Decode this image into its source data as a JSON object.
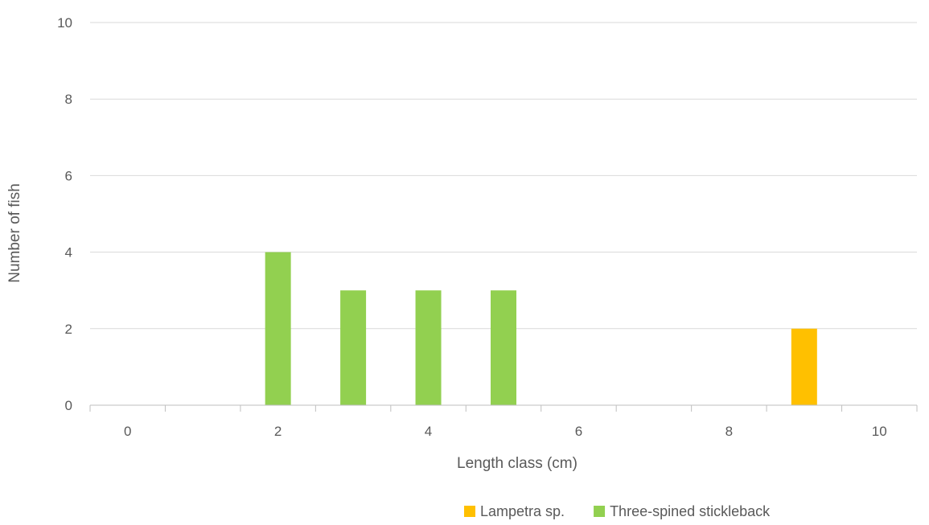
{
  "chart_data": {
    "type": "bar",
    "title": "",
    "xlabel": "Length class (cm)",
    "ylabel": "Number of fish",
    "xlim": [
      -0.5,
      10.5
    ],
    "ylim": [
      0,
      10
    ],
    "xticks": [
      0,
      2,
      4,
      6,
      8,
      10
    ],
    "yticks": [
      0,
      2,
      4,
      6,
      8,
      10
    ],
    "grid": true,
    "legend_position": "bottom",
    "categories": [
      0,
      1,
      2,
      3,
      4,
      5,
      6,
      7,
      8,
      9,
      10
    ],
    "series": [
      {
        "name": "Lampetra sp.",
        "color": "#FFC000",
        "values": [
          0,
          0,
          0,
          0,
          0,
          0,
          0,
          0,
          0,
          2,
          0
        ]
      },
      {
        "name": "Three-spined stickleback",
        "color": "#92D050",
        "values": [
          0,
          0,
          4,
          3,
          3,
          3,
          0,
          0,
          0,
          0,
          0
        ]
      }
    ]
  }
}
